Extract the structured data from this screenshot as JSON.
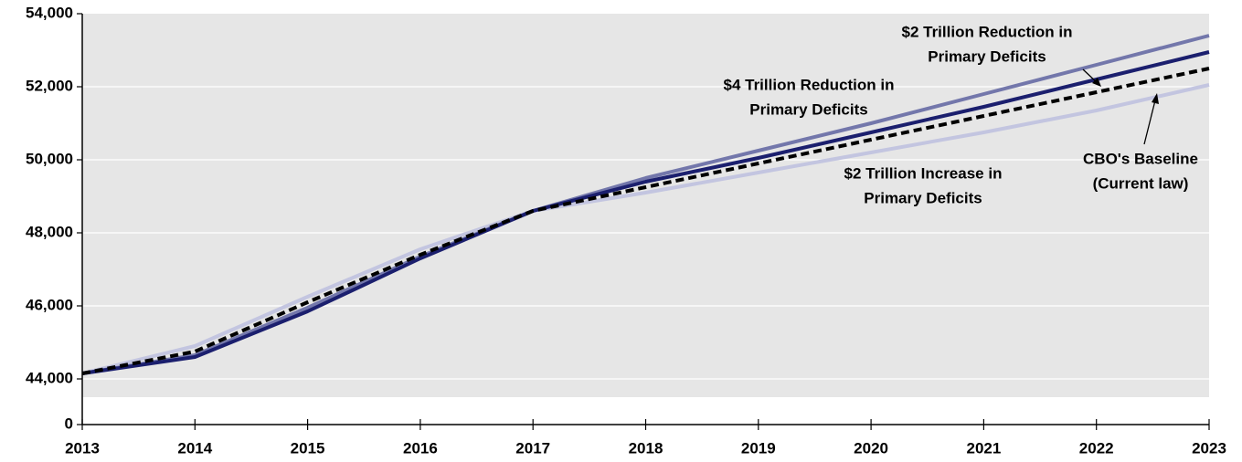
{
  "chart_data": {
    "type": "line",
    "x": [
      2013,
      2014,
      2015,
      2016,
      2017,
      2018,
      2019,
      2020,
      2021,
      2022,
      2023
    ],
    "xlim": [
      2013,
      2023
    ],
    "xticks": [
      2013,
      2014,
      2015,
      2016,
      2017,
      2018,
      2019,
      2020,
      2021,
      2022,
      2023
    ],
    "ylim": [
      43500,
      54000
    ],
    "yticks": [
      0,
      {
        "value": 44000,
        "label": "44,000"
      },
      {
        "value": 46000,
        "label": "46,000"
      },
      {
        "value": 48000,
        "label": "48,000"
      },
      {
        "value": 50000,
        "label": "50,000"
      },
      {
        "value": 52000,
        "label": "52,000"
      },
      {
        "value": 54000,
        "label": "54,000"
      }
    ],
    "grid": true,
    "series": [
      {
        "name": "$2 Trillion Increase in Primary Deficits",
        "color": "#c3c5e0",
        "values": [
          44150,
          44900,
          46250,
          47550,
          48600,
          49100,
          49650,
          50200,
          50750,
          51350,
          52050
        ]
      },
      {
        "name": "$4 Trillion Reduction in Primary Deficits",
        "color": "#7377ab",
        "values": [
          44150,
          44650,
          45950,
          47350,
          48600,
          49500,
          50250,
          51000,
          51800,
          52600,
          53400
        ]
      },
      {
        "name": "$2 Trillion Reduction in Primary Deficits",
        "color": "#1b1f6e",
        "values": [
          44150,
          44600,
          45850,
          47300,
          48600,
          49400,
          50050,
          50750,
          51450,
          52200,
          52950
        ]
      },
      {
        "name": "CBO's Baseline (Current law)",
        "color": "#000000",
        "dashed": true,
        "values": [
          44150,
          44750,
          46100,
          47400,
          48600,
          49250,
          49900,
          50550,
          51200,
          51850,
          52500
        ]
      }
    ],
    "annotations": [
      [
        "$2 Trillion Reduction in",
        "Primary Deficits"
      ],
      [
        "$4 Trillion Reduction in",
        "Primary Deficits"
      ],
      [
        "$2 Trillion Increase in",
        "Primary Deficits"
      ],
      [
        "CBO's Baseline",
        "(Current law)"
      ]
    ]
  }
}
